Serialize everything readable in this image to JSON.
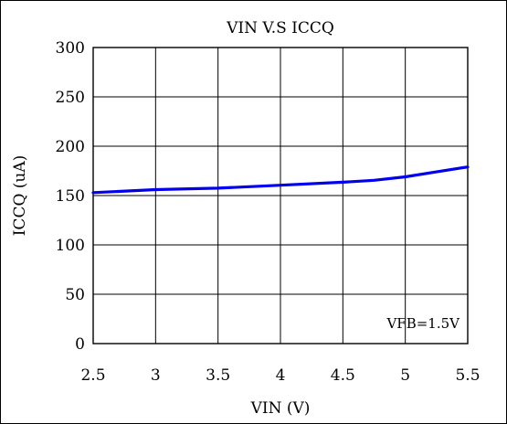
{
  "chart_data": {
    "type": "line",
    "title": "VIN V.S ICCQ",
    "xlabel": "VIN (V)",
    "ylabel": "ICCQ (uA)",
    "xlim": [
      2.5,
      5.5
    ],
    "ylim": [
      0,
      300
    ],
    "x_ticks": [
      "2.5",
      "3",
      "3.5",
      "4",
      "4.5",
      "5",
      "5.5"
    ],
    "y_ticks": [
      "300",
      "250",
      "200",
      "150",
      "100",
      "50",
      "0"
    ],
    "grid": true,
    "annotation": "VFB=1.5V",
    "series": [
      {
        "color": "#0000ee",
        "x": [
          2.5,
          3.0,
          3.5,
          4.0,
          4.5,
          4.75,
          5.0,
          5.25,
          5.5
        ],
        "y": [
          153,
          156,
          157.5,
          160.5,
          163.5,
          165.5,
          169,
          174,
          179
        ]
      }
    ]
  }
}
